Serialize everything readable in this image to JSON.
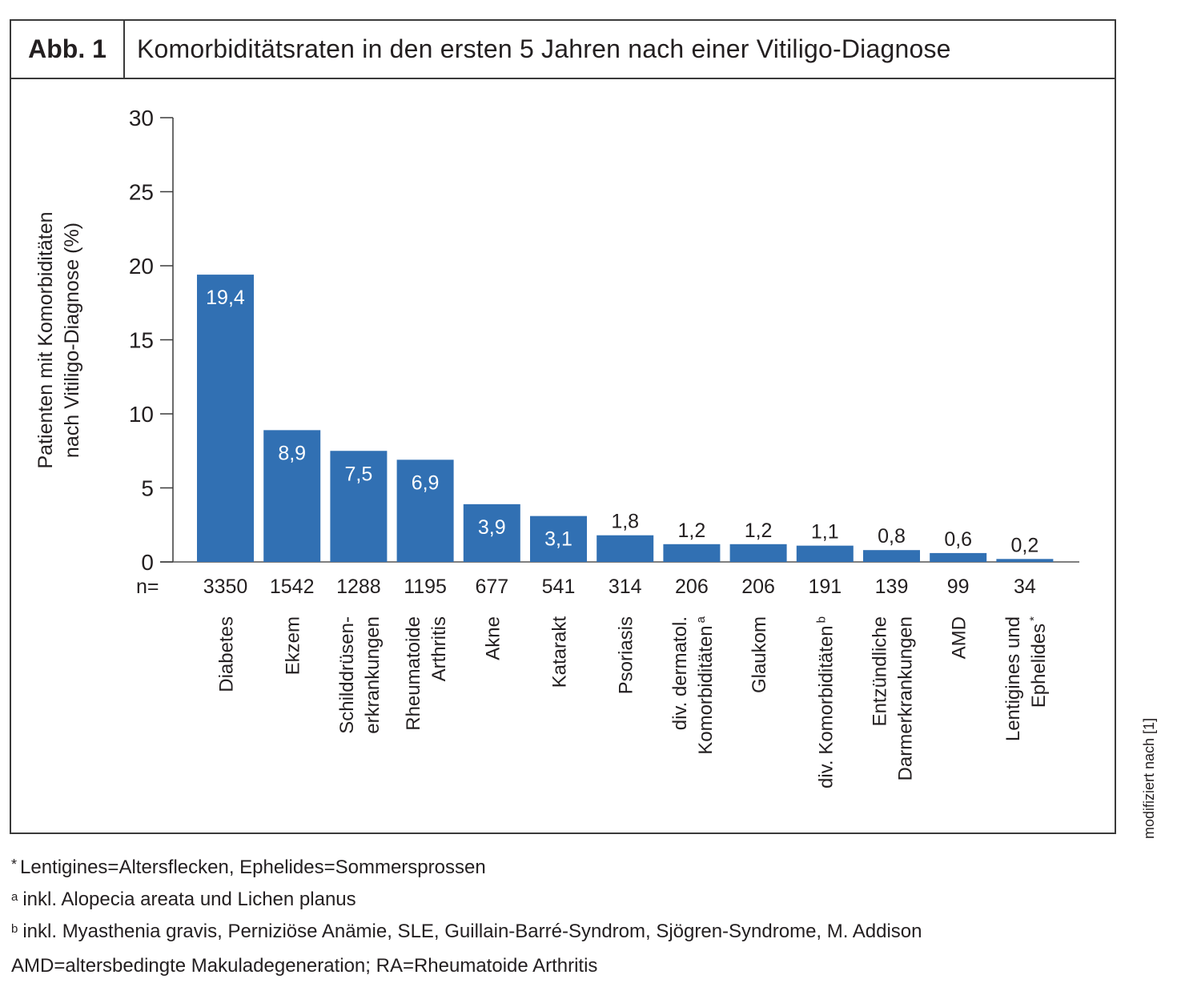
{
  "figure": {
    "label": "Abb. 1",
    "title": "Komorbiditätsraten in den ersten 5 Jahren nach einer Vitiligo-Diagnose",
    "source_note": "modifiziert nach [1]"
  },
  "chart_data": {
    "type": "bar",
    "title": "Komorbiditätsraten in den ersten 5 Jahren nach einer Vitiligo-Diagnose",
    "xlabel": "",
    "ylabel": [
      "Patienten mit Komorbiditäten",
      "nach Vitiligo-Diagnose (%)"
    ],
    "ylim": [
      0,
      30
    ],
    "yticks": [
      0,
      5,
      10,
      15,
      20,
      25,
      30
    ],
    "grid": false,
    "bar_color": "#3170b3",
    "n_prefix": "n=",
    "categories": [
      {
        "lines": [
          "Diabetes"
        ],
        "sup": ""
      },
      {
        "lines": [
          "Ekzem"
        ],
        "sup": ""
      },
      {
        "lines": [
          "Schilddrüsen-",
          "erkrankungen"
        ],
        "sup": ""
      },
      {
        "lines": [
          "Rheumatoide",
          "Arthritis"
        ],
        "sup": ""
      },
      {
        "lines": [
          "Akne"
        ],
        "sup": ""
      },
      {
        "lines": [
          "Katarakt"
        ],
        "sup": ""
      },
      {
        "lines": [
          "Psoriasis"
        ],
        "sup": ""
      },
      {
        "lines": [
          "div. dermatol.",
          "Komorbiditäten"
        ],
        "sup": "a"
      },
      {
        "lines": [
          "Glaukom"
        ],
        "sup": ""
      },
      {
        "lines": [
          "div. Komorbiditäten"
        ],
        "sup": "b"
      },
      {
        "lines": [
          "Entzündliche",
          "Darmerkrankungen"
        ],
        "sup": ""
      },
      {
        "lines": [
          "AMD"
        ],
        "sup": ""
      },
      {
        "lines": [
          "Lentigines und",
          "Ephelides"
        ],
        "sup": "*"
      }
    ],
    "values": [
      19.4,
      8.9,
      7.5,
      6.9,
      3.9,
      3.1,
      1.8,
      1.2,
      1.2,
      1.1,
      0.8,
      0.6,
      0.2
    ],
    "value_labels": [
      "19,4",
      "8,9",
      "7,5",
      "6,9",
      "3,9",
      "3,1",
      "1,8",
      "1,2",
      "1,2",
      "1,1",
      "0,8",
      "0,6",
      "0,2"
    ],
    "n": [
      "3350",
      "1542",
      "1288",
      "1195",
      "677",
      "541",
      "314",
      "206",
      "206",
      "191",
      "139",
      "99",
      "34"
    ]
  },
  "footnotes": {
    "star": {
      "marker": "*",
      "text": "Lentigines=Altersflecken, Ephelides=Sommersprossen"
    },
    "a": {
      "marker": "a",
      "text": "inkl. Alopecia areata und Lichen planus"
    },
    "b": {
      "marker": "b",
      "text": "inkl. Myasthenia gravis, Perniziöse Anämie, SLE, Guillain-Barré-Syndrom, Sjögren-Syndrome, M. Addison"
    },
    "abbreviations": "AMD=altersbedingte Makuladegeneration; RA=Rheumatoide Arthritis"
  }
}
